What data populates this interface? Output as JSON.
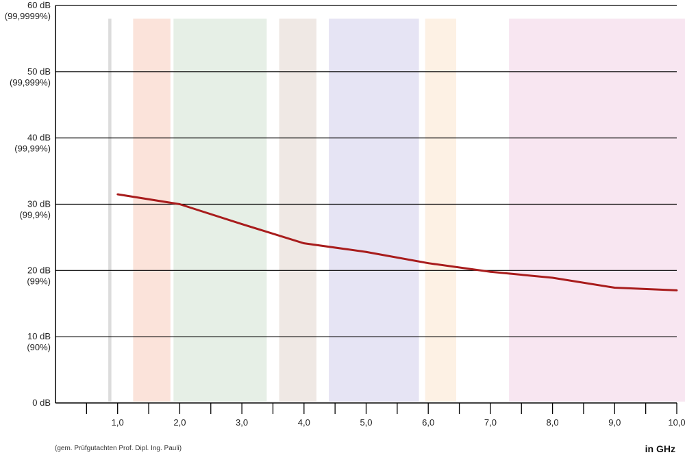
{
  "chart_data": {
    "type": "line",
    "xlabel": "in GHz",
    "x_ticks": [
      "1,0",
      "2,0",
      "3,0",
      "4,0",
      "5,0",
      "6,0",
      "7,0",
      "8,0",
      "9,0",
      "10,0"
    ],
    "xlim": [
      0,
      10
    ],
    "ylim": [
      0,
      60
    ],
    "y_ticks": [
      {
        "value": 60,
        "label": "60 dB",
        "sublabel": "(99,9999%)"
      },
      {
        "value": 50,
        "label": "50 dB",
        "sublabel": "(99,999%)"
      },
      {
        "value": 40,
        "label": "40 dB",
        "sublabel": "(99,99%)"
      },
      {
        "value": 30,
        "label": "30 dB",
        "sublabel": "(99,9%)"
      },
      {
        "value": 20,
        "label": "20 dB",
        "sublabel": "(99%)"
      },
      {
        "value": 10,
        "label": "10 dB",
        "sublabel": "(90%)"
      },
      {
        "value": 0,
        "label": "0 dB",
        "sublabel": ""
      }
    ],
    "series": [
      {
        "color": "#a81c1c",
        "x": [
          1.0,
          2.0,
          3.0,
          4.0,
          5.0,
          6.0,
          7.0,
          8.0,
          9.0,
          10.0
        ],
        "y": [
          31.5,
          30.0,
          27.0,
          24.1,
          22.8,
          21.1,
          19.8,
          18.9,
          17.4,
          17.0
        ]
      }
    ],
    "bands": [
      {
        "x0": -0.15,
        "x1": -0.1,
        "color": "#dcdcdc"
      },
      {
        "x0": 0.25,
        "x1": 0.85,
        "color": "#fbe3da"
      },
      {
        "x0": 0.9,
        "x1": 2.4,
        "color": "#e6efe6"
      },
      {
        "x0": 2.6,
        "x1": 3.2,
        "color": "#efe8e4"
      },
      {
        "x0": 3.4,
        "x1": 4.85,
        "color": "#e6e4f4"
      },
      {
        "x0": 4.95,
        "x1": 5.45,
        "color": "#fdf1e4"
      },
      {
        "x0": 6.3,
        "x1": 10.0,
        "color": "#f8e6f1"
      }
    ],
    "grid": true
  },
  "footer": {
    "source": "(gem. Prüfgutachten Prof. Dipl. Ing. Pauli)",
    "unit": "in GHz"
  }
}
